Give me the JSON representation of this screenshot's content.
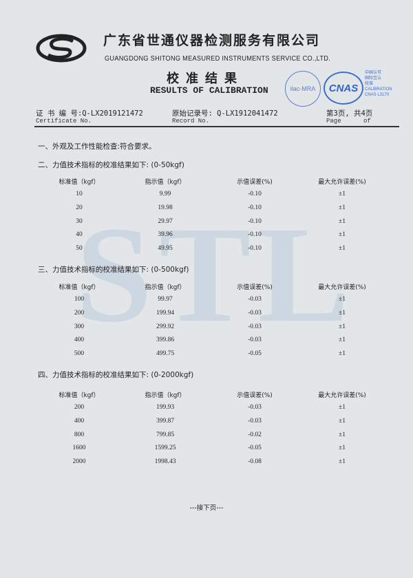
{
  "header": {
    "company_cn": "广东省世通仪器检测服务有限公司",
    "company_en": "GUANGDONG SHITONG MEASURED INSTRUMENTS SERVICE CO.,LTD.",
    "title_cn": "校准结果",
    "title_en": "RESULTS OF CALIBRATION",
    "ilac_label": "ilac-MRA",
    "cnas_label": "CNAS",
    "cnas_text": [
      "中国认可",
      "国际互认",
      "校准",
      "CALIBRATION",
      "CNAS L3170"
    ],
    "watermark": "STL",
    "accent_color": "#3b6fd0"
  },
  "meta": {
    "certificate_label": "证 书 编 号:Q-LX2019121472",
    "certificate_label_en": "Certificate No.",
    "record_label": "原始记录号: Q-LX1912041472",
    "record_label_en": "Record No.",
    "page_label": "第3页, 共4页",
    "page_label_en": "Page      of"
  },
  "section1": "一、外观及工作性能检查:符合要求。",
  "columns": [
    "标准值（kgf）",
    "指示值（kgf）",
    "示值误差(%)",
    "最大允许误差(%)"
  ],
  "tables": [
    {
      "title": "二、力值技术指标的校准结果如下: (0-50kgf)",
      "rows": [
        [
          "10",
          "9.99",
          "-0.10",
          "±1"
        ],
        [
          "20",
          "19.98",
          "-0.10",
          "±1"
        ],
        [
          "30",
          "29.97",
          "-0.10",
          "±1"
        ],
        [
          "40",
          "39.96",
          "-0.10",
          "±1"
        ],
        [
          "50",
          "49.95",
          "-0.10",
          "±1"
        ]
      ]
    },
    {
      "title": "三、力值技术指标的校准结果如下: (0-500kgf)",
      "rows": [
        [
          "100",
          "99.97",
          "-0.03",
          "±1"
        ],
        [
          "200",
          "199.94",
          "-0.03",
          "±1"
        ],
        [
          "300",
          "299.92",
          "-0.03",
          "±1"
        ],
        [
          "400",
          "399.86",
          "-0.03",
          "±1"
        ],
        [
          "500",
          "499.75",
          "-0.05",
          "±1"
        ]
      ]
    },
    {
      "title": "四、力值技术指标的校准结果如下: (0-2000kgf)",
      "rows": [
        [
          "200",
          "199.93",
          "-0.03",
          "±1"
        ],
        [
          "400",
          "399.87",
          "-0.03",
          "±1"
        ],
        [
          "800",
          "799.85",
          "-0.02",
          "±1"
        ],
        [
          "1600",
          "1599.25",
          "-0.05",
          "±1"
        ],
        [
          "2000",
          "1998.43",
          "-0.08",
          "±1"
        ]
      ]
    }
  ],
  "footer": "---接下页---"
}
